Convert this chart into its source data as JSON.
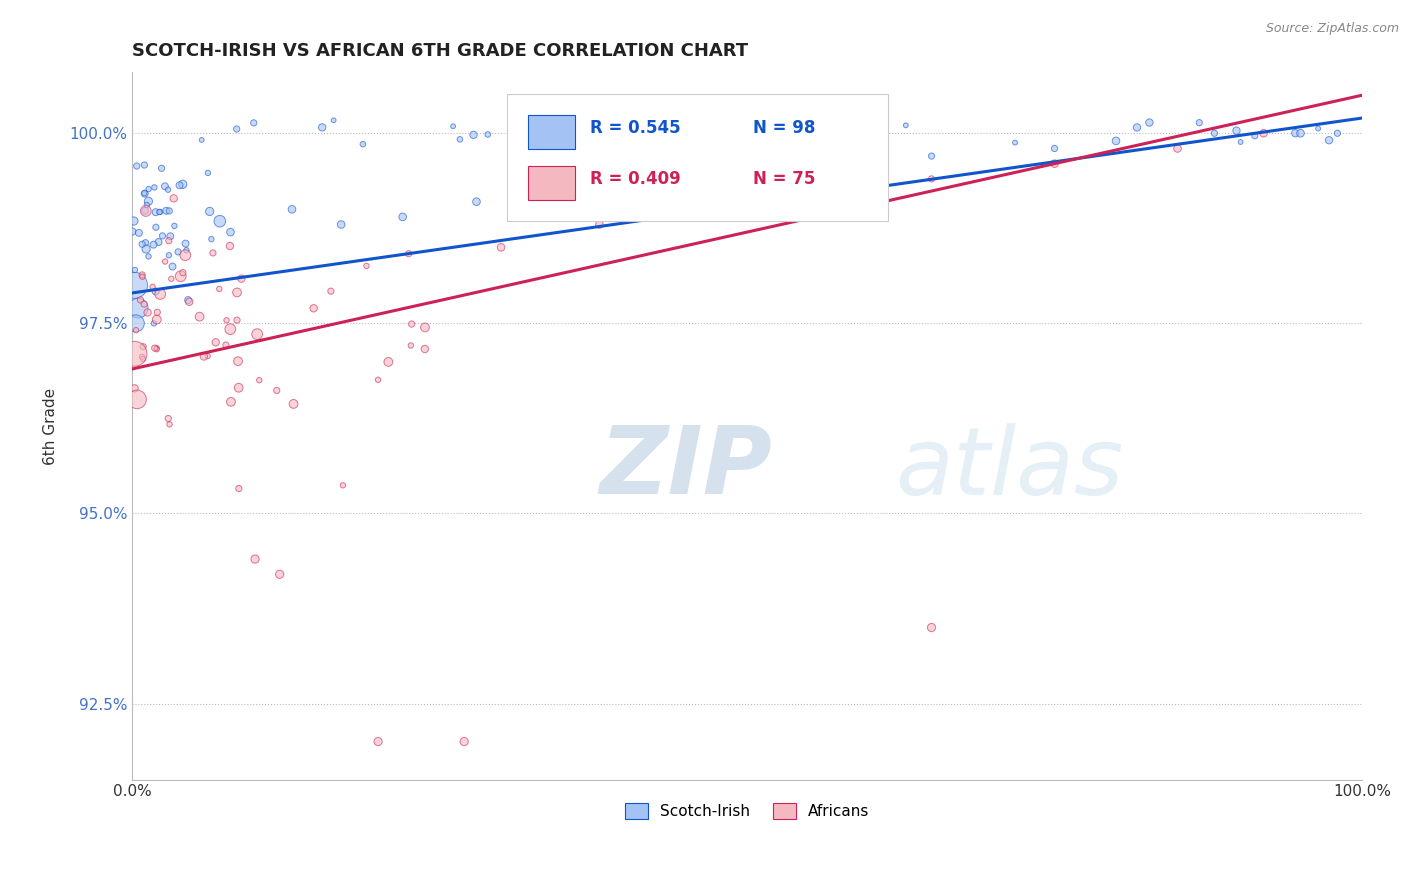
{
  "title": "SCOTCH-IRISH VS AFRICAN 6TH GRADE CORRELATION CHART",
  "source_text": "Source: ZipAtlas.com",
  "ylabel": "6th Grade",
  "blue_color": "#a4c2f4",
  "pink_color": "#f4b8c1",
  "blue_line_color": "#1155cc",
  "pink_line_color": "#cc2255",
  "legend_r_blue": "R = 0.545",
  "legend_n_blue": "N = 98",
  "legend_r_pink": "R = 0.409",
  "legend_n_pink": "N = 75",
  "legend_label_blue": "Scotch-Irish",
  "legend_label_pink": "Africans",
  "watermark_zip": "ZIP",
  "watermark_atlas": "atlas",
  "blue_trend": [
    0.0,
    0.979,
    1.0,
    1.002
  ],
  "pink_trend": [
    0.0,
    0.969,
    1.0,
    1.005
  ],
  "ylim_low": 0.915,
  "ylim_high": 1.008,
  "yticks": [
    0.925,
    0.95,
    0.975,
    1.0
  ],
  "ytick_labels": [
    "92.5%",
    "95.0%",
    "97.5%",
    "100.0%"
  ]
}
